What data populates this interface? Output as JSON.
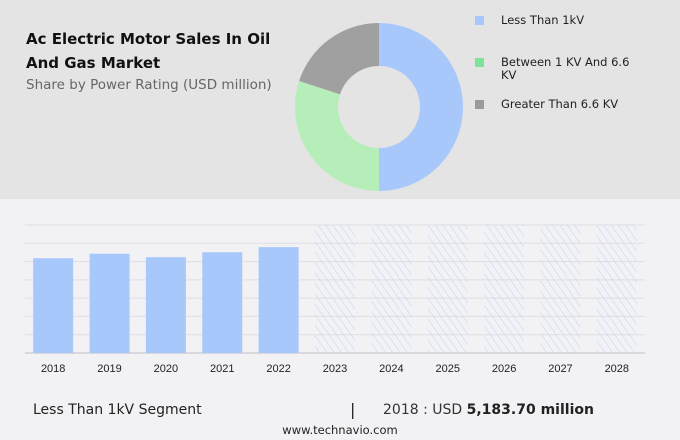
{
  "header": {
    "title": "Ac Electric Motor Sales In Oil And Gas Market",
    "subtitle": "Share by Power Rating (USD million)"
  },
  "chart_data": [
    {
      "type": "pie",
      "variant": "donut",
      "title": "Ac Electric Motor Sales In Oil And Gas Market",
      "subtitle": "Share by Power Rating (USD million)",
      "legend_position": "right",
      "slices": [
        {
          "name": "Less Than 1kV",
          "value": 50,
          "color": "#a8c8fc"
        },
        {
          "name": "Between 1 KV And 6.6 KV",
          "value": 30,
          "color": "#b5eeb9"
        },
        {
          "name": "Greater Than 6.6 KV",
          "value": 20,
          "color": "#a0a0a0"
        }
      ],
      "legend_colors": [
        "#a8c8fc",
        "#7de39a",
        "#9a9a9a"
      ]
    },
    {
      "type": "bar",
      "categories": [
        "2018",
        "2019",
        "2020",
        "2021",
        "2022",
        "2023",
        "2024",
        "2025",
        "2026",
        "2027",
        "2028"
      ],
      "values": [
        5183.7,
        5430,
        5240,
        5510,
        5790,
        null,
        null,
        null,
        null,
        null,
        null
      ],
      "forecast_categories": [
        "2023",
        "2024",
        "2025",
        "2026",
        "2027",
        "2028"
      ],
      "ylim": [
        0,
        7000
      ],
      "grid": true,
      "bar_color": "#a8c8fc",
      "forecast_pattern": "hatched",
      "xlabel": "",
      "ylabel": ""
    }
  ],
  "footer": {
    "segment": "Less Than 1kV Segment",
    "separator": "|",
    "year_prefix": "2018 : USD",
    "value": "5,183.70 million",
    "site": "www.technavio.com"
  }
}
